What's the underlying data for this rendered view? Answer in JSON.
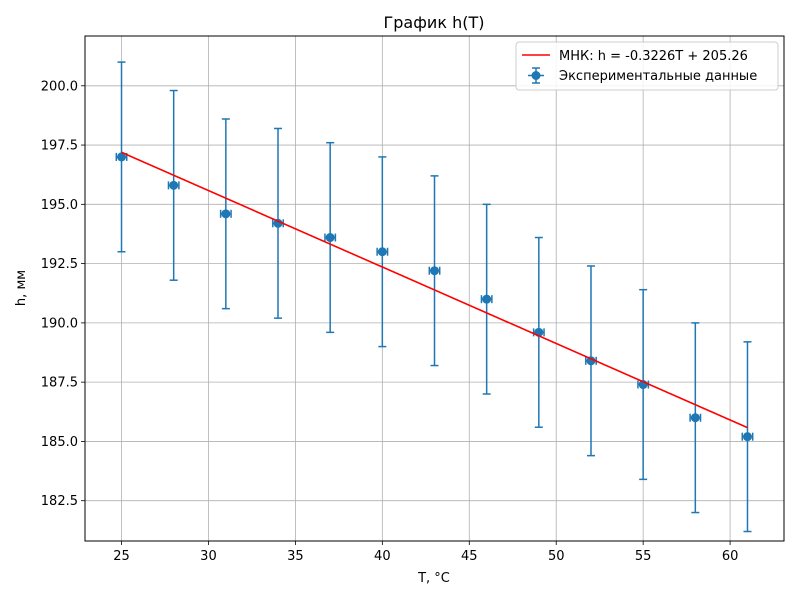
{
  "chart_data": {
    "type": "scatter",
    "title": "График h(T)",
    "xlabel": "T, °C",
    "ylabel": "h, мм",
    "xlim": [
      22.9,
      63.1
    ],
    "ylim": [
      180.8,
      202.1
    ],
    "xticks": [
      25,
      30,
      35,
      40,
      45,
      50,
      55,
      60
    ],
    "yticks": [
      182.5,
      185.0,
      187.5,
      190.0,
      192.5,
      195.0,
      197.5,
      200.0
    ],
    "xtick_labels": [
      "25",
      "30",
      "35",
      "40",
      "45",
      "50",
      "55",
      "60"
    ],
    "ytick_labels": [
      "182.5",
      "185.0",
      "187.5",
      "190.0",
      "192.5",
      "195.0",
      "197.5",
      "200.0"
    ],
    "grid": true,
    "legend_position": "top-right",
    "series": [
      {
        "name": "Экспериментальные данные",
        "kind": "errorbar",
        "color": "#1f77b4",
        "x": [
          25,
          28,
          31,
          34,
          37,
          40,
          43,
          46,
          49,
          52,
          55,
          58,
          61
        ],
        "y": [
          197.0,
          195.8,
          194.6,
          194.2,
          193.6,
          193.0,
          192.2,
          191.0,
          189.6,
          188.4,
          187.4,
          186.0,
          185.2
        ],
        "yerr": [
          4.0,
          4.0,
          4.0,
          4.0,
          4.0,
          4.0,
          4.0,
          4.0,
          4.0,
          4.0,
          4.0,
          4.0,
          4.0
        ],
        "xerr": [
          0.3,
          0.3,
          0.3,
          0.3,
          0.3,
          0.3,
          0.3,
          0.3,
          0.3,
          0.3,
          0.3,
          0.3,
          0.3
        ]
      },
      {
        "name": "МНК: h = -0.3226T + 205.26",
        "kind": "line",
        "color": "#ff0000",
        "x": [
          25,
          61
        ],
        "y": [
          197.195,
          185.581
        ]
      }
    ]
  }
}
